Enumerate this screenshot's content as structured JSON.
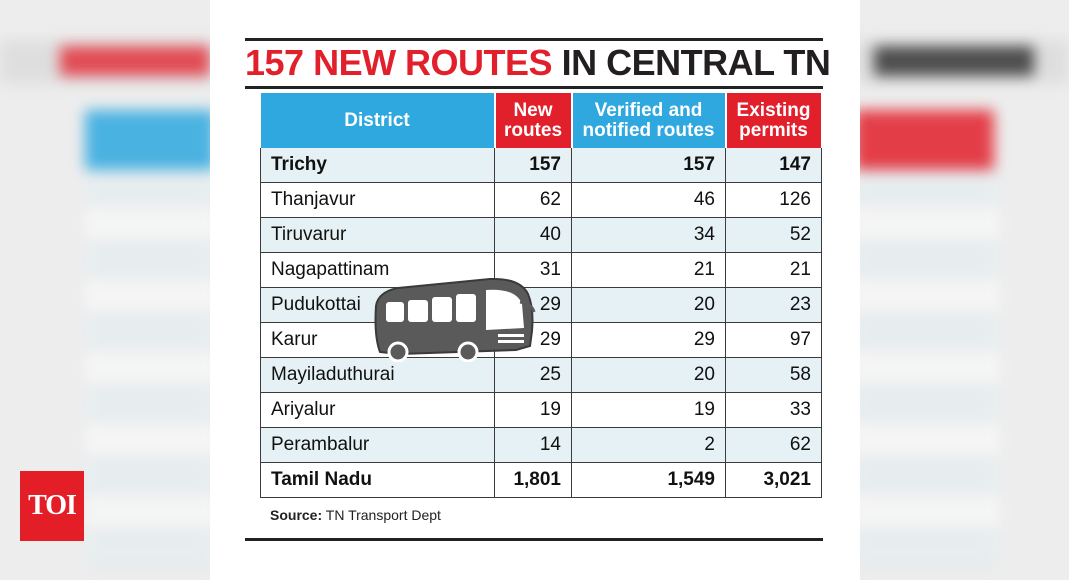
{
  "title": {
    "red_part": "157 NEW ROUTES",
    "dark_part": "IN CENTRAL TN"
  },
  "headers": {
    "district": "District",
    "new_routes": [
      "New",
      "routes"
    ],
    "verified": [
      "Verified and",
      "notified routes"
    ],
    "existing": [
      "Existing",
      "permits"
    ]
  },
  "chart_data": {
    "type": "table",
    "title": "157 NEW ROUTES IN CENTRAL TN",
    "columns": [
      "District",
      "New routes",
      "Verified and notified routes",
      "Existing permits"
    ],
    "rows": [
      {
        "district": "Trichy",
        "new_routes": "157",
        "verified": "157",
        "existing": "147"
      },
      {
        "district": "Thanjavur",
        "new_routes": "62",
        "verified": "46",
        "existing": "126"
      },
      {
        "district": "Tiruvarur",
        "new_routes": "40",
        "verified": "34",
        "existing": "52"
      },
      {
        "district": "Nagapattinam",
        "new_routes": "31",
        "verified": "21",
        "existing": "21"
      },
      {
        "district": "Pudukottai",
        "new_routes": "29",
        "verified": "20",
        "existing": "23"
      },
      {
        "district": "Karur",
        "new_routes": "29",
        "verified": "29",
        "existing": "97"
      },
      {
        "district": "Mayiladuthurai",
        "new_routes": "25",
        "verified": "20",
        "existing": "58"
      },
      {
        "district": "Ariyalur",
        "new_routes": "19",
        "verified": "19",
        "existing": "33"
      },
      {
        "district": "Perambalur",
        "new_routes": "14",
        "verified": "2",
        "existing": "62"
      }
    ],
    "total": {
      "district": "Tamil Nadu",
      "new_routes": "1,801",
      "verified": "1,549",
      "existing": "3,021"
    }
  },
  "source": {
    "label": "Source:",
    "text": "TN Transport Dept"
  },
  "brand": {
    "logo_text": "TOI",
    "color": "#e41e26"
  },
  "colors": {
    "accent_red": "#e2202c",
    "header_blue": "#2ea8df",
    "row_tint": "#e5f1f4"
  },
  "icons": {
    "bus": "bus-icon"
  }
}
